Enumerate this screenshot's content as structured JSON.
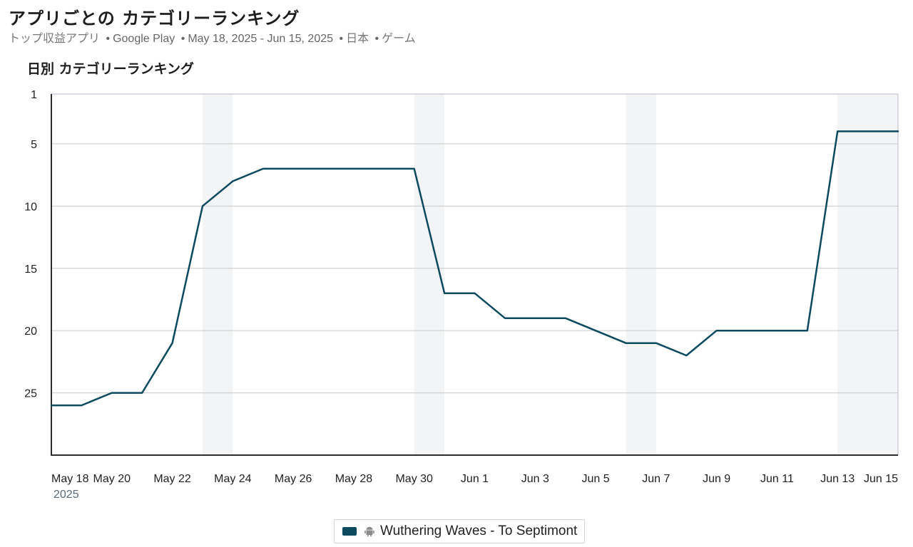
{
  "header": {
    "title": "アプリごとの カテゴリーランキング",
    "subtitle_metric": "トップ収益アプリ",
    "subtitle_store": "Google Play",
    "subtitle_dates": "May 18, 2025 - Jun 15, 2025",
    "subtitle_country": "日本",
    "subtitle_category": "ゲーム",
    "separator": "•"
  },
  "legend": {
    "icon": "android-icon",
    "label": "Wuthering Waves - To Septimont"
  },
  "colors": {
    "series": "#0c4a60",
    "weekend_band": "#f3f4f6",
    "grid": "#c9c9c9",
    "axis": "#2d2d2d",
    "subtitle": "#666666"
  },
  "chart_data": {
    "type": "line",
    "title": "日別 カテゴリーランキング",
    "xlabel": "",
    "ylabel": "",
    "y_inverted": true,
    "ylim": [
      1,
      30
    ],
    "yticks": [
      1,
      5,
      10,
      15,
      20,
      25
    ],
    "grid": true,
    "x": [
      "May 18",
      "May 19",
      "May 20",
      "May 21",
      "May 22",
      "May 23",
      "May 24",
      "May 25",
      "May 26",
      "May 27",
      "May 28",
      "May 29",
      "May 30",
      "May 31",
      "Jun 1",
      "Jun 2",
      "Jun 3",
      "Jun 4",
      "Jun 5",
      "Jun 6",
      "Jun 7",
      "Jun 8",
      "Jun 9",
      "Jun 10",
      "Jun 11",
      "Jun 12",
      "Jun 13",
      "Jun 14",
      "Jun 15"
    ],
    "xtick_labels": [
      "May 18",
      "May 20",
      "May 22",
      "May 24",
      "May 26",
      "May 28",
      "May 30",
      "Jun 1",
      "Jun 3",
      "Jun 5",
      "Jun 7",
      "Jun 9",
      "Jun 11",
      "Jun 13",
      "Jun 15"
    ],
    "year_label": "2025",
    "weekend_bands": [
      [
        "May 23",
        "May 24"
      ],
      [
        "May 30",
        "May 31"
      ],
      [
        "Jun 6",
        "Jun 7"
      ],
      [
        "Jun 13",
        "Jun 15"
      ]
    ],
    "series": [
      {
        "name": "Wuthering Waves - To Septimont",
        "values": [
          26,
          26,
          25,
          25,
          21,
          10,
          8,
          7,
          7,
          7,
          7,
          7,
          7,
          17,
          17,
          19,
          19,
          19,
          20,
          21,
          21,
          22,
          20,
          20,
          20,
          20,
          4,
          4,
          4
        ]
      }
    ],
    "legend_position": "bottom-center"
  }
}
